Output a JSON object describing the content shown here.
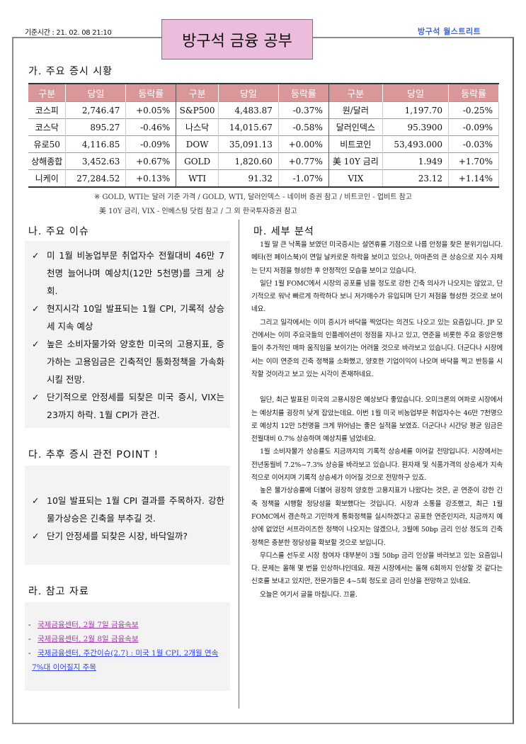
{
  "header": {
    "base_time": "기준시간 : 21. 02. 08 21:10",
    "title": "방구석 금융 공부",
    "logo": "방구석 월스트리트",
    "colors": {
      "title_bg": "#ebbcdc",
      "table_header_bg": "#d9979a",
      "logo": "#3a66d6"
    }
  },
  "market": {
    "heading": "가. 주요 증시 시황",
    "columns": [
      "구분",
      "당일",
      "등락률",
      "구분",
      "당일",
      "등락률",
      "구분",
      "당일",
      "등락률"
    ],
    "rows": [
      [
        [
          "코스피",
          "2,746.47",
          "+0.05%"
        ],
        [
          "S&P500",
          "4,483.87",
          "-0.37%"
        ],
        [
          "원/달러",
          "1,197.70",
          "-0.25%"
        ]
      ],
      [
        [
          "코스닥",
          "895.27",
          "-0.46%"
        ],
        [
          "나스닥",
          "14,015.67",
          "-0.58%"
        ],
        [
          "달러인덱스",
          "95.3900",
          "-0.09%"
        ]
      ],
      [
        [
          "유로50",
          "4,116.85",
          "-0.09%"
        ],
        [
          "DOW",
          "35,091.13",
          "+0.00%"
        ],
        [
          "비트코인",
          "53,493.000",
          "-0.03%"
        ]
      ],
      [
        [
          "상해종합",
          "3,452.63",
          "+0.67%"
        ],
        [
          "GOLD",
          "1,820.60",
          "+0.77%"
        ],
        [
          "美 10Y 금리",
          "1.949",
          "+1.70%"
        ]
      ],
      [
        [
          "니케이",
          "27,284.52",
          "+0.13%"
        ],
        [
          "WTI",
          "91.32",
          "-1.07%"
        ],
        [
          "VIX",
          "23.12",
          "+1.14%"
        ]
      ]
    ],
    "note1": "※ GOLD, WTI는 달러 기준 가격 / GOLD, WTI, 달러인덱스 - 네이버 증권 참고 / 비트코인 - 업비트 참고",
    "note2": "美 10Y 금리, VIX - 인베스팅 닷컴 참고 / 그 외 한국투자증권 참고"
  },
  "issues": {
    "heading": "나. 주요 이슈",
    "check_icon": "✓",
    "items": [
      "미 1월 비농업부문 취업자수 전월대비 46만 7천명 늘어나며 예상치(12만 5천명)를 크게 상회.",
      "현지시각 10일 발표되는 1월 CPI, 기록적 상승세 지속 예상",
      "높은 소비자물가와 양호한 미국의 고용지표, 증가하는 고용임금은 긴축적인 통화정책을 가속화 시킬 전망.",
      "단기적으로 안정세를 되찾은 미국 증시, VIX는 23까지 하락. 1월 CPI가 관건."
    ]
  },
  "points": {
    "heading": "다. 추후 증시 관전 POINT !",
    "items": [
      "10일 발표되는 1월 CPI 결과를 주목하자. 강한 물가상승은 긴축을 부추길 것.",
      "단기 안정세를 되찾은 시장, 바닥일까?"
    ]
  },
  "references": {
    "heading": "라. 참고 자료",
    "dash": "-",
    "links": [
      "국제금융센터, 2월 7일 금융속보",
      "국제금융센터, 2월 8일 금융속보",
      "국제금융센터, 주간이슈(2.7) : 미국 1월 CPI, 2개월 연속 7%대 이어질지 주목"
    ]
  },
  "analysis": {
    "heading": "마. 세부 분석",
    "paragraphs": [
      "1월 말 큰 낙폭을 보였던 미국증시는 설연휴를 기점으로 나름 안정을 찾은 분위기입니다. 메타(전 페이스북)이 연일 날카로운 하락을 보이고 있으나, 아마존의 큰 상승으로 지수 자체는 단지 저점을 형성한 후 안정적인 모습을 보이고 있습니다.",
      "일단 1월 FOMC에서 시장의 공포를 넘을 정도로 강한 긴축 의사가 나오지는 않았고, 단기적으로 워낙 빠르게 하락하다 보니 저가매수가 유입되며 단기 저점을 형성한  것으로 보이네요.",
      "그리고 일각에서는 이미 증시가 바닥을 찍었다는 의견도 나오고 있는 요즘입니다. JP 모건에서는 이미 주요국들의 인플레이션이 정점을 지나고 있고, 연준을 비롯한 주요 중앙은행들이 추가적인 매파 움직임을 보이기는 어려울 것으로 바라보고 있습니다.  더군다나 시장에서는 이미 연준의 긴축 정책을 소화했고, 양호한 기업이익이 나오며 바닥을 찍고 반등을 시작할 것이라고 보고 있는 시각이 존재하네요.",
      "일단, 최근 발표된 미국의 고용시장은 예상보다 좋았습니다. 오미크론의 여파로 시장에서는 예상치를 굉장히 낮게 잡았는데요. 이번 1월 미국 비농업부문 취업자수는 46만 7천명으로 예상치 12만 5천명을 크게 뛰어넘는 좋은 실적을 보였죠. 더군다나 시간당 평균 임금은 전월대비 0.7% 상승하며 예상치를 넘었네요.",
      "1월 소비자물가 상승률도 지금까지의 기록적 상승세를 이어갈 전망입니다. 시장에서는 전년동월비 7.2%~7.3% 상승을 바라보고 있습니다. 원자재 및 식품가격의 상승세가 지속적으로 이어지며 기록적 상승세가 이어질 것으로 전망하구 있죠.",
      "높은 물가상승률에 더불어 굉장히 양호한 고용지표가 나왔다는 것은, 곧 연준이 강한 긴축 정책을 시행할 정당성을 확보했다는 것입니다. 시장과 소통을 강조했고, 최근 1월 FOMC에서 겸손하고 기민하게 통화정책을 실시하겠다고 공표한 연준인지라, 지금까지 예상에 없었던 서프라이즈한 정책이 나오지는 않겠으나, 3월에 50bp 금리 인상 정도의 긴축 정책은 충분한 정당성을 확보할 것으로 보입니다.",
      "무디스를 선두로 시장 참여자 대부분이 3월 50bp 금리 인상을 바라보고 있는 요즘입니다. 문제는 올해 몇 번을 인상하냐인데요. 채권 시장에서는 올해 6회까지 인상할 것 같다는 신호를 보내고 있지만, 전문가들은 4~5회 정도로 금리 인상을 전망하고 있네요.",
      "오늘은 여기서 글을 마칩니다. 끄읕."
    ]
  }
}
